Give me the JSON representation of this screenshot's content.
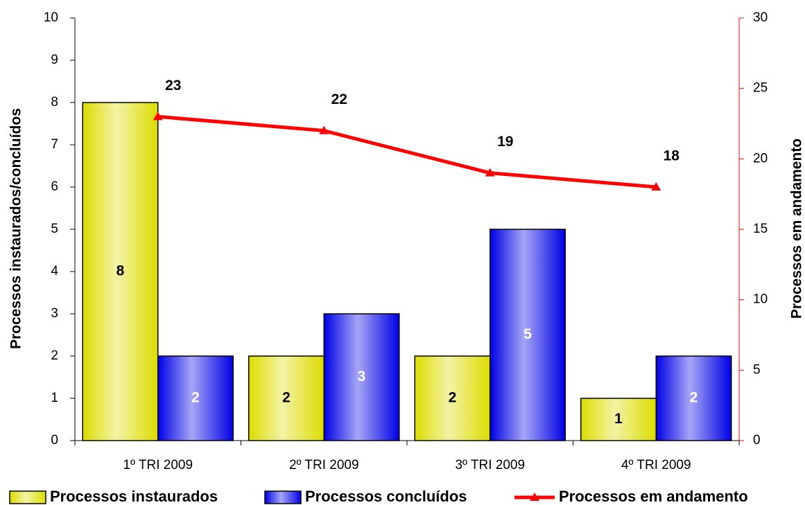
{
  "chart_data": {
    "type": "bar+line",
    "categories": [
      "1º TRI 2009",
      "2º TRI 2009",
      "3º TRI 2009",
      "4º TRI 2009"
    ],
    "series": [
      {
        "name": "Processos instaurados",
        "type": "bar",
        "color": "#dcdc00",
        "values": [
          8,
          2,
          2,
          1
        ],
        "axis": "y"
      },
      {
        "name": "Processos concluídos",
        "type": "bar",
        "color": "#0000e6",
        "values": [
          2,
          3,
          5,
          2
        ],
        "axis": "y"
      },
      {
        "name": "Processos em andamento",
        "type": "line",
        "color": "#ff0000",
        "values": [
          23,
          22,
          19,
          18
        ],
        "axis": "y2"
      }
    ],
    "ylabel": "Processos instaurados/concluídos",
    "y2label": "Processos em andamento",
    "ylim": [
      0,
      10
    ],
    "yticks": [
      0,
      1,
      2,
      3,
      4,
      5,
      6,
      7,
      8,
      9,
      10
    ],
    "y2lim": [
      0,
      30
    ],
    "y2ticks": [
      0,
      5,
      10,
      15,
      20,
      25,
      30
    ],
    "y2color": "#ff0000",
    "legend": "bottom"
  }
}
